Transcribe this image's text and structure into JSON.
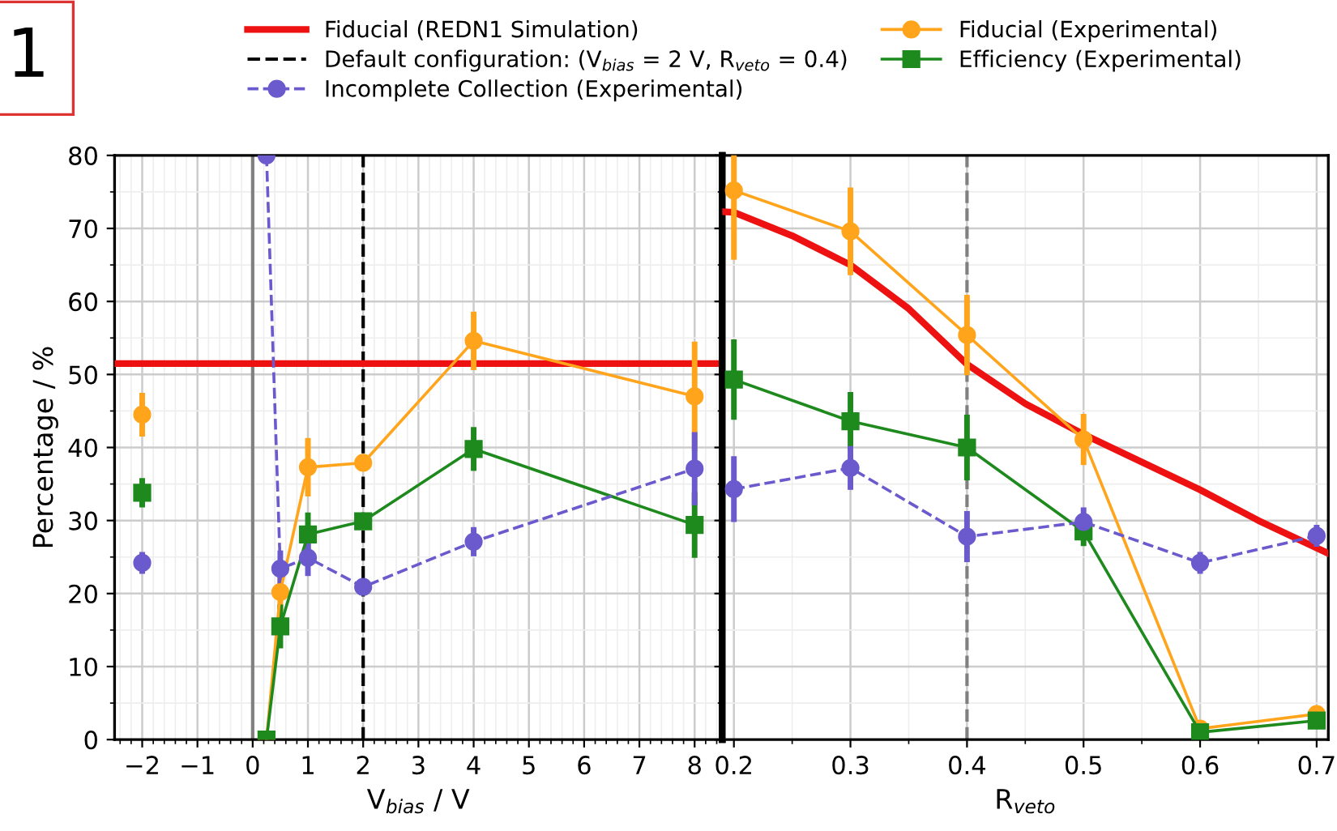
{
  "chart_data": [
    {
      "type": "line",
      "xlabel": "V$_{bias}$ / V",
      "ylabel": "Percentage / %",
      "annotations": [
        "1"
      ],
      "xlim": [
        -2.5,
        8.5
      ],
      "xticks": [
        -2,
        -1,
        0,
        1,
        2,
        3,
        4,
        5,
        6,
        7,
        8
      ],
      "ylim": [
        0,
        80
      ],
      "yticks": [
        0,
        10,
        20,
        30,
        40,
        50,
        60,
        70,
        80
      ],
      "grid": true,
      "legend": "top",
      "ref_lines": [
        {
          "axis": "x",
          "value": 0,
          "color": "#808080",
          "line_style": "solid"
        },
        {
          "axis": "x",
          "value": 2,
          "label": "Default configuration: (V$_{bias}$ = 2 V, R$_{veto}$ = 0.4)",
          "color": "#000000",
          "line_style": "dashed"
        }
      ],
      "series": [
        {
          "name": "Fiducial (REDN1 Simulation)",
          "type": "line",
          "color": "#ee1111",
          "marker": "none",
          "line_style": "solid",
          "x": [
            -2.5,
            8.5
          ],
          "values": [
            51.5,
            51.5
          ]
        },
        {
          "name": "Fiducial (Experimental)",
          "type": "line",
          "color": "#ffa41b",
          "marker": "circle",
          "line_style": "solid",
          "x": [
            0.25,
            0.5,
            1,
            2,
            4,
            8
          ],
          "values": [
            0,
            20.2,
            37.3,
            37.9,
            54.6,
            47
          ],
          "errors": [
            null,
            2.5,
            4,
            1,
            4,
            7.5
          ]
        },
        {
          "name": "Efficiency (Experimental)",
          "type": "line",
          "color": "#1e8a1e",
          "marker": "square",
          "line_style": "solid",
          "x": [
            0.25,
            0.5,
            1,
            2,
            4,
            8
          ],
          "values": [
            0,
            15.5,
            28.1,
            29.9,
            39.8,
            29.4
          ],
          "errors": [
            null,
            3,
            3,
            1,
            3,
            4.5
          ]
        },
        {
          "name": "Incomplete Collection (Experimental)",
          "type": "line",
          "color": "#6a5acd",
          "marker": "circle",
          "line_style": "dashed",
          "x": [
            0.25,
            0.5,
            1,
            2,
            4,
            8
          ],
          "values": [
            80,
            23.4,
            24.9,
            20.9,
            27.1,
            37.1
          ],
          "errors": [
            null,
            2.5,
            2.5,
            0.5,
            2,
            5
          ]
        },
        {
          "type": "scatter",
          "color": "#ffa41b",
          "marker": "circle",
          "x": [
            -2
          ],
          "values": [
            44.5
          ],
          "errors": [
            3
          ]
        },
        {
          "type": "scatter",
          "color": "#1e8a1e",
          "marker": "square",
          "x": [
            -2
          ],
          "values": [
            33.8
          ],
          "errors": [
            2
          ]
        },
        {
          "type": "scatter",
          "color": "#6a5acd",
          "marker": "circle",
          "x": [
            -2
          ],
          "values": [
            24.2
          ],
          "errors": [
            1.5
          ]
        }
      ]
    },
    {
      "type": "line",
      "xlabel": "R$_{veto}$",
      "tick_labels": "x",
      "xlim": [
        0.19,
        0.71
      ],
      "xticks": [
        0.2,
        0.3,
        0.4,
        0.5,
        0.6,
        0.7
      ],
      "ylim": [
        0,
        80
      ],
      "yticks": [
        0,
        10,
        20,
        30,
        40,
        50,
        60,
        70,
        80
      ],
      "grid": true,
      "ref_lines": [
        {
          "axis": "x",
          "value": 0.4,
          "color": "#808080",
          "line_style": "dashed"
        }
      ],
      "series": [
        {
          "type": "line",
          "color": "#ee1111",
          "marker": "none",
          "line_style": "solid",
          "x": [
            0.19,
            0.2,
            0.25,
            0.3,
            0.35,
            0.4,
            0.45,
            0.5,
            0.55,
            0.6,
            0.65,
            0.71
          ],
          "values": [
            72.3,
            72.2,
            69,
            65,
            59,
            51.4,
            46,
            41.8,
            38,
            34.2,
            30,
            25.5
          ]
        },
        {
          "type": "line",
          "color": "#ffa41b",
          "marker": "circle",
          "line_style": "solid",
          "x": [
            0.2,
            0.3,
            0.4,
            0.5,
            0.6,
            0.7
          ],
          "values": [
            75.2,
            69.6,
            55.4,
            41.1,
            1.5,
            3.5
          ],
          "errors": [
            9.5,
            6,
            5.5,
            3.5,
            null,
            null
          ]
        },
        {
          "type": "line",
          "color": "#1e8a1e",
          "marker": "square",
          "line_style": "solid",
          "x": [
            0.2,
            0.3,
            0.4,
            0.5,
            0.6,
            0.7
          ],
          "values": [
            49.3,
            43.6,
            40,
            28.5,
            1,
            2.6
          ],
          "errors": [
            5.5,
            4,
            4.5,
            2,
            null,
            null
          ]
        },
        {
          "type": "line",
          "color": "#6a5acd",
          "marker": "circle",
          "line_style": "dashed",
          "x": [
            0.2,
            0.3,
            0.4,
            0.5,
            0.6,
            0.7
          ],
          "values": [
            34.3,
            37.2,
            27.8,
            29.8,
            24.2,
            27.9
          ],
          "errors": [
            4.5,
            3,
            3.5,
            2,
            1.5,
            1.5
          ]
        }
      ]
    }
  ]
}
